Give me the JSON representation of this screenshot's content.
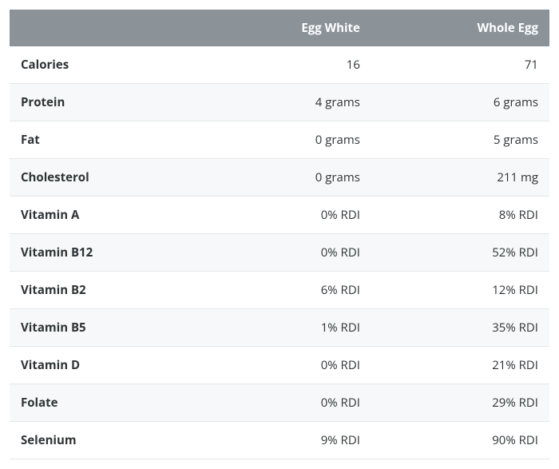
{
  "table": {
    "type": "table",
    "columns": [
      "",
      "Egg White",
      "Whole Egg"
    ],
    "column_widths_pct": [
      34,
      33,
      33
    ],
    "column_align": [
      "left",
      "right",
      "right"
    ],
    "rows": [
      [
        "Calories",
        "16",
        "71"
      ],
      [
        "Protein",
        "4 grams",
        "6 grams"
      ],
      [
        "Fat",
        "0 grams",
        "5 grams"
      ],
      [
        "Cholesterol",
        "0 grams",
        "211 mg"
      ],
      [
        "Vitamin A",
        "0% RDI",
        "8% RDI"
      ],
      [
        "Vitamin B12",
        "0% RDI",
        "52% RDI"
      ],
      [
        "Vitamin B2",
        "6% RDI",
        "12% RDI"
      ],
      [
        "Vitamin B5",
        "1% RDI",
        "35% RDI"
      ],
      [
        "Vitamin D",
        "0% RDI",
        "21% RDI"
      ],
      [
        "Folate",
        "0% RDI",
        "29% RDI"
      ],
      [
        "Selenium",
        "9% RDI",
        "90% RDI"
      ]
    ],
    "header_bg": "#8b9298",
    "header_fg": "#ffffff",
    "row_alt_bg": "#f6f8f9",
    "row_border": "#e4e7ea",
    "text_color": "#2f3436",
    "header_font_weight": 700,
    "label_font_weight": 700,
    "font_size_pt": 11
  }
}
